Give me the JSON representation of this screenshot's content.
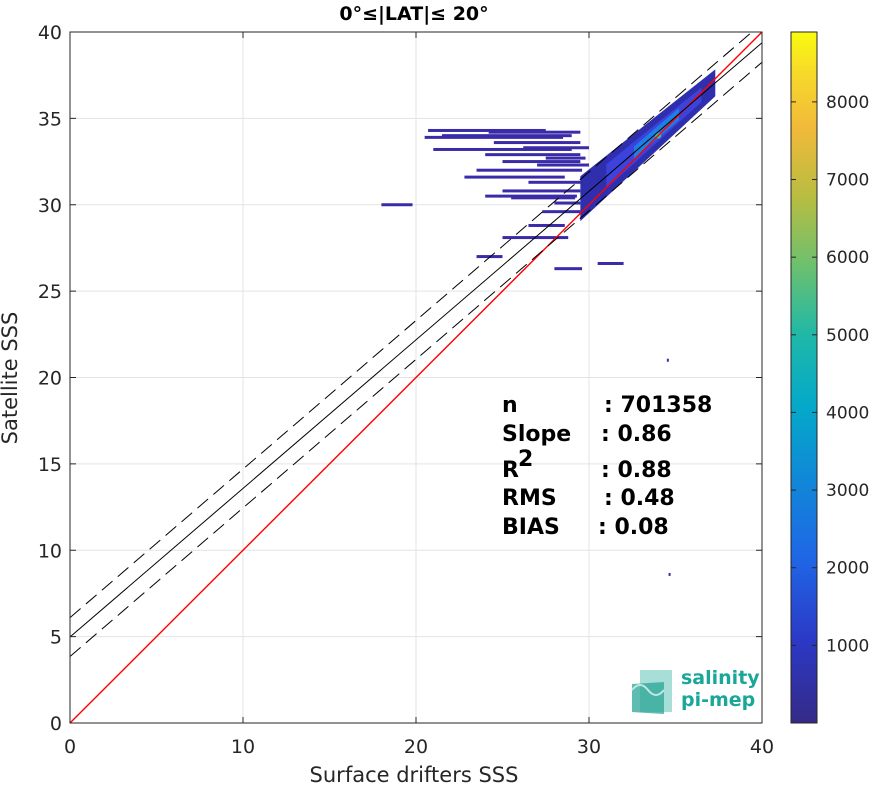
{
  "chart_data": {
    "type": "heatmap",
    "title": "0°≤|LAT|≤ 20°",
    "xlabel": "Surface drifters SSS",
    "ylabel": "Satellite SSS",
    "xlim": [
      0,
      40
    ],
    "ylim": [
      0,
      40
    ],
    "xticks": [
      "0",
      "10",
      "20",
      "30",
      "40"
    ],
    "yticks": [
      "0",
      "5",
      "10",
      "15",
      "20",
      "25",
      "30",
      "35",
      "40"
    ],
    "grid": true,
    "colorbar": {
      "range": [
        0,
        8900
      ],
      "ticks": [
        "1000",
        "2000",
        "3000",
        "4000",
        "5000",
        "6000",
        "7000",
        "8000"
      ],
      "colormap": "parula"
    },
    "lines": [
      {
        "role": "identity",
        "color": "#ff0000",
        "style": "solid",
        "x": [
          0,
          40
        ],
        "y": [
          0,
          40
        ]
      },
      {
        "role": "regression",
        "color": "#000000",
        "style": "solid",
        "x": [
          0,
          40
        ],
        "y": [
          4.98,
          39.38
        ]
      },
      {
        "role": "regression +1 std",
        "color": "#000000",
        "style": "dashed",
        "x": [
          0,
          40
        ],
        "y": [
          6.1,
          40.5
        ]
      },
      {
        "role": "regression -1 std",
        "color": "#000000",
        "style": "dashed",
        "x": [
          0,
          40
        ],
        "y": [
          3.85,
          38.25
        ]
      }
    ],
    "density_cloud": {
      "core_x_range": [
        29.5,
        37.3
      ],
      "core_along_line": "regression",
      "peak_at": [
        34,
        34
      ],
      "scatter_rows_y": [
        34.3,
        34.2,
        34.0,
        33.9,
        33.6,
        33.3,
        33.2,
        32.9,
        32.7,
        32.5,
        32.3,
        32.0,
        31.6,
        31.3,
        30.8,
        30.5,
        30.4,
        30.1,
        30.0,
        29.6,
        28.8,
        28.1,
        27.0,
        26.6,
        26.3,
        21.0,
        8.6
      ],
      "scatter_rows_xmin": [
        20.7,
        24.2,
        21.5,
        20.5,
        24.5,
        26.2,
        21.0,
        24.0,
        27.5,
        25.0,
        27.0,
        23.5,
        22.8,
        26.5,
        25.0,
        24.0,
        25.5,
        28.0,
        18.0,
        27.3,
        26.5,
        25.0,
        23.5,
        30.5,
        28.0,
        34.5,
        34.6
      ],
      "scatter_rows_xmax": [
        27.5,
        29.5,
        29.0,
        28.5,
        29.5,
        30.0,
        29.0,
        29.5,
        29.8,
        29.5,
        30.0,
        29.6,
        28.6,
        29.8,
        29.5,
        29.3,
        29.2,
        29.5,
        19.8,
        29.5,
        28.6,
        28.8,
        25.0,
        32.0,
        29.6,
        34.6,
        34.7
      ]
    },
    "stats": [
      {
        "label": "n",
        "value": ": 701358"
      },
      {
        "label": "Slope",
        "value": ": 0.86"
      },
      {
        "label": "R",
        "value": ": 0.88",
        "superscript": "2"
      },
      {
        "label": "RMS",
        "value": ": 0.48"
      },
      {
        "label": "BIAS",
        "value": ": 0.08"
      }
    ],
    "logo": {
      "line1": "salinity",
      "line2": "pi-mep"
    }
  }
}
